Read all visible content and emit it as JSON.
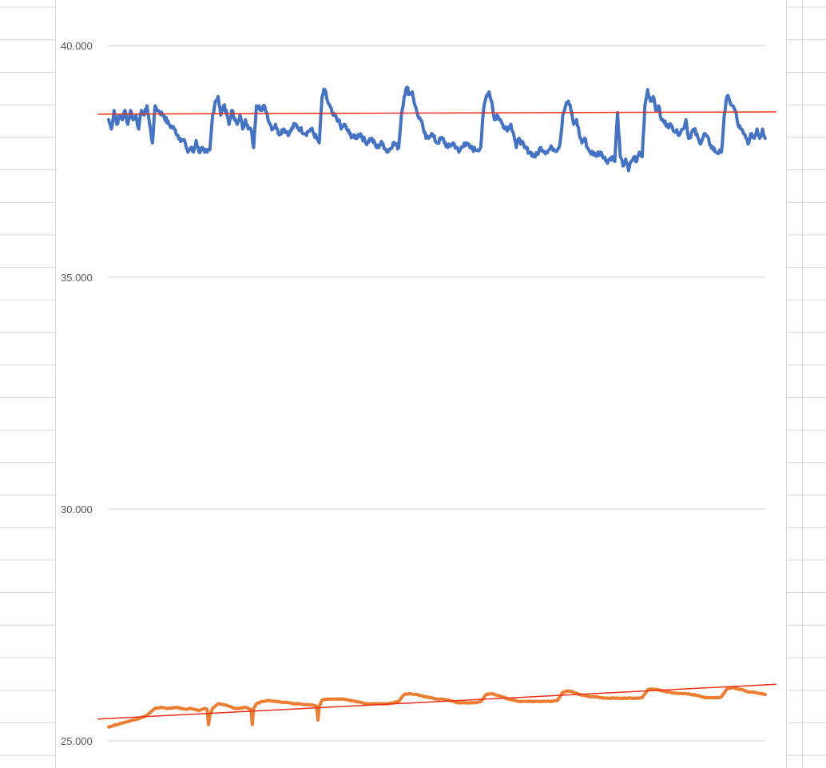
{
  "colors": {
    "series_blue": "#4472c4",
    "series_orange": "#ed7d31",
    "trendline": "#e8301c",
    "gridline": "#d9d9d9",
    "sheet_grid": "#d6d6d6",
    "tick_text": "#595959"
  },
  "chart_data": {
    "type": "line",
    "title": "",
    "xlabel": "",
    "ylabel": "",
    "ylim": [
      25,
      40.5
    ],
    "yticks": [
      {
        "value": 40,
        "label": "40.000"
      },
      {
        "value": 35,
        "label": "35.000"
      },
      {
        "value": 30,
        "label": "30.000"
      },
      {
        "value": 25,
        "label": "25.000"
      }
    ],
    "grid": true,
    "legend": "none",
    "x_count": 241,
    "series": [
      {
        "color": "#4472c4",
        "keypoints": [
          [
            0,
            38.4
          ],
          [
            1,
            38.2
          ],
          [
            2,
            38.6
          ],
          [
            3,
            38.3
          ],
          [
            4,
            38.5
          ],
          [
            5,
            38.4
          ],
          [
            6,
            38.6
          ],
          [
            7,
            38.3
          ],
          [
            8,
            38.6
          ],
          [
            9,
            38.4
          ],
          [
            10,
            38.5
          ],
          [
            11,
            38.2
          ],
          [
            12,
            38.6
          ],
          [
            13,
            38.5
          ],
          [
            14,
            38.7
          ],
          [
            15,
            38.3
          ],
          [
            16,
            37.9
          ],
          [
            17,
            38.7
          ],
          [
            18,
            38.6
          ],
          [
            20,
            38.5
          ],
          [
            22,
            38.3
          ],
          [
            24,
            38.2
          ],
          [
            26,
            38.0
          ],
          [
            28,
            37.9
          ],
          [
            29,
            37.7
          ],
          [
            30,
            37.8
          ],
          [
            31,
            37.7
          ],
          [
            32,
            37.95
          ],
          [
            33,
            37.7
          ],
          [
            34,
            37.8
          ],
          [
            35,
            37.7
          ],
          [
            36,
            37.7
          ],
          [
            37,
            37.75
          ],
          [
            38,
            38.5
          ],
          [
            39,
            38.8
          ],
          [
            40,
            38.9
          ],
          [
            41,
            38.5
          ],
          [
            42,
            38.7
          ],
          [
            43,
            38.6
          ],
          [
            44,
            38.3
          ],
          [
            45,
            38.6
          ],
          [
            46,
            38.4
          ],
          [
            47,
            38.3
          ],
          [
            48,
            38.5
          ],
          [
            49,
            38.2
          ],
          [
            50,
            38.4
          ],
          [
            51,
            38.2
          ],
          [
            52,
            38.2
          ],
          [
            53,
            37.8
          ],
          [
            54,
            38.7
          ],
          [
            55,
            38.7
          ],
          [
            56,
            38.6
          ],
          [
            57,
            38.7
          ],
          [
            58,
            38.5
          ],
          [
            59,
            38.3
          ],
          [
            60,
            38.2
          ],
          [
            61,
            38.3
          ],
          [
            62,
            38.1
          ],
          [
            64,
            38.2
          ],
          [
            66,
            38.1
          ],
          [
            68,
            38.3
          ],
          [
            70,
            38.2
          ],
          [
            72,
            38.1
          ],
          [
            74,
            38.2
          ],
          [
            76,
            38.0
          ],
          [
            77,
            37.9
          ],
          [
            78,
            38.9
          ],
          [
            79,
            39.05
          ],
          [
            80,
            38.8
          ],
          [
            82,
            38.5
          ],
          [
            84,
            38.4
          ],
          [
            85,
            38.2
          ],
          [
            86,
            38.3
          ],
          [
            88,
            38.1
          ],
          [
            90,
            38.0
          ],
          [
            92,
            38.1
          ],
          [
            94,
            37.9
          ],
          [
            96,
            38.0
          ],
          [
            98,
            37.8
          ],
          [
            100,
            37.9
          ],
          [
            102,
            37.7
          ],
          [
            104,
            37.9
          ],
          [
            106,
            37.8
          ],
          [
            107,
            38.5
          ],
          [
            108,
            38.9
          ],
          [
            109,
            39.1
          ],
          [
            110,
            38.95
          ],
          [
            111,
            39.0
          ],
          [
            112,
            38.7
          ],
          [
            113,
            38.5
          ],
          [
            114,
            38.4
          ],
          [
            115,
            38.2
          ],
          [
            116,
            38.0
          ],
          [
            118,
            38.1
          ],
          [
            120,
            37.9
          ],
          [
            122,
            38.0
          ],
          [
            124,
            37.8
          ],
          [
            126,
            37.9
          ],
          [
            128,
            37.7
          ],
          [
            130,
            37.9
          ],
          [
            132,
            37.8
          ],
          [
            134,
            37.75
          ],
          [
            136,
            37.8
          ],
          [
            137,
            38.6
          ],
          [
            138,
            38.9
          ],
          [
            139,
            39.0
          ],
          [
            140,
            38.8
          ],
          [
            141,
            38.4
          ],
          [
            142,
            38.5
          ],
          [
            144,
            38.3
          ],
          [
            146,
            38.2
          ],
          [
            147,
            38.3
          ],
          [
            148,
            38.1
          ],
          [
            149,
            37.8
          ],
          [
            150,
            38.0
          ],
          [
            152,
            37.8
          ],
          [
            154,
            37.7
          ],
          [
            156,
            37.6
          ],
          [
            158,
            37.8
          ],
          [
            160,
            37.7
          ],
          [
            162,
            37.8
          ],
          [
            164,
            37.75
          ],
          [
            165,
            37.9
          ],
          [
            166,
            38.5
          ],
          [
            167,
            38.7
          ],
          [
            168,
            38.8
          ],
          [
            169,
            38.6
          ],
          [
            170,
            38.3
          ],
          [
            171,
            38.4
          ],
          [
            172,
            38.1
          ],
          [
            173,
            37.9
          ],
          [
            174,
            38.0
          ],
          [
            175,
            37.8
          ],
          [
            176,
            37.7
          ],
          [
            178,
            37.65
          ],
          [
            180,
            37.7
          ],
          [
            182,
            37.5
          ],
          [
            184,
            37.6
          ],
          [
            185,
            37.5
          ],
          [
            186,
            38.55
          ],
          [
            187,
            37.6
          ],
          [
            188,
            37.4
          ],
          [
            189,
            37.55
          ],
          [
            190,
            37.3
          ],
          [
            191,
            37.5
          ],
          [
            192,
            37.6
          ],
          [
            193,
            37.5
          ],
          [
            194,
            37.7
          ],
          [
            195,
            37.6
          ],
          [
            196,
            38.7
          ],
          [
            197,
            39.05
          ],
          [
            198,
            38.8
          ],
          [
            199,
            38.9
          ],
          [
            200,
            38.6
          ],
          [
            201,
            38.7
          ],
          [
            202,
            38.4
          ],
          [
            204,
            38.3
          ],
          [
            206,
            38.25
          ],
          [
            208,
            38.1
          ],
          [
            210,
            38.2
          ],
          [
            211,
            38.4
          ],
          [
            212,
            38.0
          ],
          [
            214,
            38.2
          ],
          [
            216,
            37.9
          ],
          [
            218,
            38.1
          ],
          [
            220,
            37.85
          ],
          [
            222,
            37.7
          ],
          [
            224,
            37.7
          ],
          [
            225,
            38.5
          ],
          [
            226,
            38.9
          ],
          [
            227,
            38.8
          ],
          [
            228,
            38.7
          ],
          [
            229,
            38.6
          ],
          [
            230,
            38.3
          ],
          [
            231,
            38.2
          ],
          [
            232,
            38.1
          ],
          [
            233,
            38.0
          ],
          [
            234,
            37.9
          ],
          [
            235,
            38.1
          ],
          [
            236,
            38.0
          ],
          [
            237,
            38.2
          ],
          [
            238,
            38.0
          ],
          [
            239,
            38.2
          ],
          [
            240,
            38.0
          ]
        ]
      },
      {
        "color": "#ed7d31",
        "keypoints": [
          [
            0,
            25.3
          ],
          [
            3,
            25.35
          ],
          [
            6,
            25.4
          ],
          [
            9,
            25.45
          ],
          [
            12,
            25.5
          ],
          [
            14,
            25.55
          ],
          [
            15,
            25.6
          ],
          [
            17,
            25.7
          ],
          [
            19,
            25.72
          ],
          [
            22,
            25.7
          ],
          [
            25,
            25.72
          ],
          [
            28,
            25.68
          ],
          [
            30,
            25.7
          ],
          [
            33,
            25.65
          ],
          [
            35,
            25.7
          ],
          [
            36,
            25.68
          ],
          [
            36.5,
            25.35
          ],
          [
            37,
            25.55
          ],
          [
            38,
            25.7
          ],
          [
            40,
            25.8
          ],
          [
            42,
            25.78
          ],
          [
            44,
            25.75
          ],
          [
            46,
            25.7
          ],
          [
            48,
            25.7
          ],
          [
            50,
            25.72
          ],
          [
            52,
            25.68
          ],
          [
            52.5,
            25.35
          ],
          [
            53,
            25.7
          ],
          [
            54,
            25.8
          ],
          [
            56,
            25.85
          ],
          [
            58,
            25.87
          ],
          [
            60,
            25.86
          ],
          [
            62,
            25.85
          ],
          [
            64,
            25.83
          ],
          [
            66,
            25.82
          ],
          [
            68,
            25.8
          ],
          [
            70,
            25.8
          ],
          [
            72,
            25.78
          ],
          [
            74,
            25.78
          ],
          [
            76,
            25.75
          ],
          [
            76.5,
            25.45
          ],
          [
            77,
            25.75
          ],
          [
            78,
            25.88
          ],
          [
            80,
            25.9
          ],
          [
            82,
            25.9
          ],
          [
            84,
            25.9
          ],
          [
            86,
            25.9
          ],
          [
            88,
            25.88
          ],
          [
            90,
            25.85
          ],
          [
            92,
            25.83
          ],
          [
            94,
            25.8
          ],
          [
            96,
            25.8
          ],
          [
            98,
            25.8
          ],
          [
            100,
            25.8
          ],
          [
            102,
            25.8
          ],
          [
            104,
            25.82
          ],
          [
            106,
            25.85
          ],
          [
            108,
            26.0
          ],
          [
            110,
            26.02
          ],
          [
            112,
            26.0
          ],
          [
            114,
            25.98
          ],
          [
            116,
            25.95
          ],
          [
            118,
            25.93
          ],
          [
            120,
            25.9
          ],
          [
            122,
            25.9
          ],
          [
            124,
            25.88
          ],
          [
            126,
            25.85
          ],
          [
            128,
            25.82
          ],
          [
            130,
            25.82
          ],
          [
            132,
            25.82
          ],
          [
            134,
            25.82
          ],
          [
            136,
            25.85
          ],
          [
            138,
            26.0
          ],
          [
            140,
            26.02
          ],
          [
            142,
            25.98
          ],
          [
            144,
            25.95
          ],
          [
            146,
            25.9
          ],
          [
            148,
            25.88
          ],
          [
            150,
            25.85
          ],
          [
            152,
            25.85
          ],
          [
            154,
            25.85
          ],
          [
            156,
            25.85
          ],
          [
            158,
            25.85
          ],
          [
            160,
            25.85
          ],
          [
            162,
            25.85
          ],
          [
            164,
            25.87
          ],
          [
            166,
            26.05
          ],
          [
            168,
            26.08
          ],
          [
            170,
            26.05
          ],
          [
            172,
            26.0
          ],
          [
            174,
            25.98
          ],
          [
            176,
            25.95
          ],
          [
            178,
            25.95
          ],
          [
            180,
            25.93
          ],
          [
            182,
            25.92
          ],
          [
            184,
            25.92
          ],
          [
            186,
            25.92
          ],
          [
            188,
            25.92
          ],
          [
            190,
            25.92
          ],
          [
            192,
            25.92
          ],
          [
            194,
            25.92
          ],
          [
            195,
            25.93
          ],
          [
            197,
            26.1
          ],
          [
            199,
            26.12
          ],
          [
            201,
            26.1
          ],
          [
            203,
            26.07
          ],
          [
            205,
            26.05
          ],
          [
            207,
            26.03
          ],
          [
            209,
            26.02
          ],
          [
            211,
            26.02
          ],
          [
            213,
            26.0
          ],
          [
            215,
            25.98
          ],
          [
            217,
            25.95
          ],
          [
            219,
            25.93
          ],
          [
            221,
            25.93
          ],
          [
            223,
            25.93
          ],
          [
            224,
            25.95
          ],
          [
            226,
            26.12
          ],
          [
            228,
            26.15
          ],
          [
            230,
            26.12
          ],
          [
            232,
            26.1
          ],
          [
            234,
            26.05
          ],
          [
            236,
            26.05
          ],
          [
            238,
            26.02
          ],
          [
            240,
            26.0
          ]
        ]
      }
    ],
    "trendlines": [
      {
        "color": "#e8301c",
        "x": [
          -4,
          244
        ],
        "y": [
          38.52,
          38.57
        ]
      },
      {
        "color": "#e8301c",
        "x": [
          -4,
          244
        ],
        "y": [
          25.47,
          26.22
        ]
      }
    ]
  }
}
